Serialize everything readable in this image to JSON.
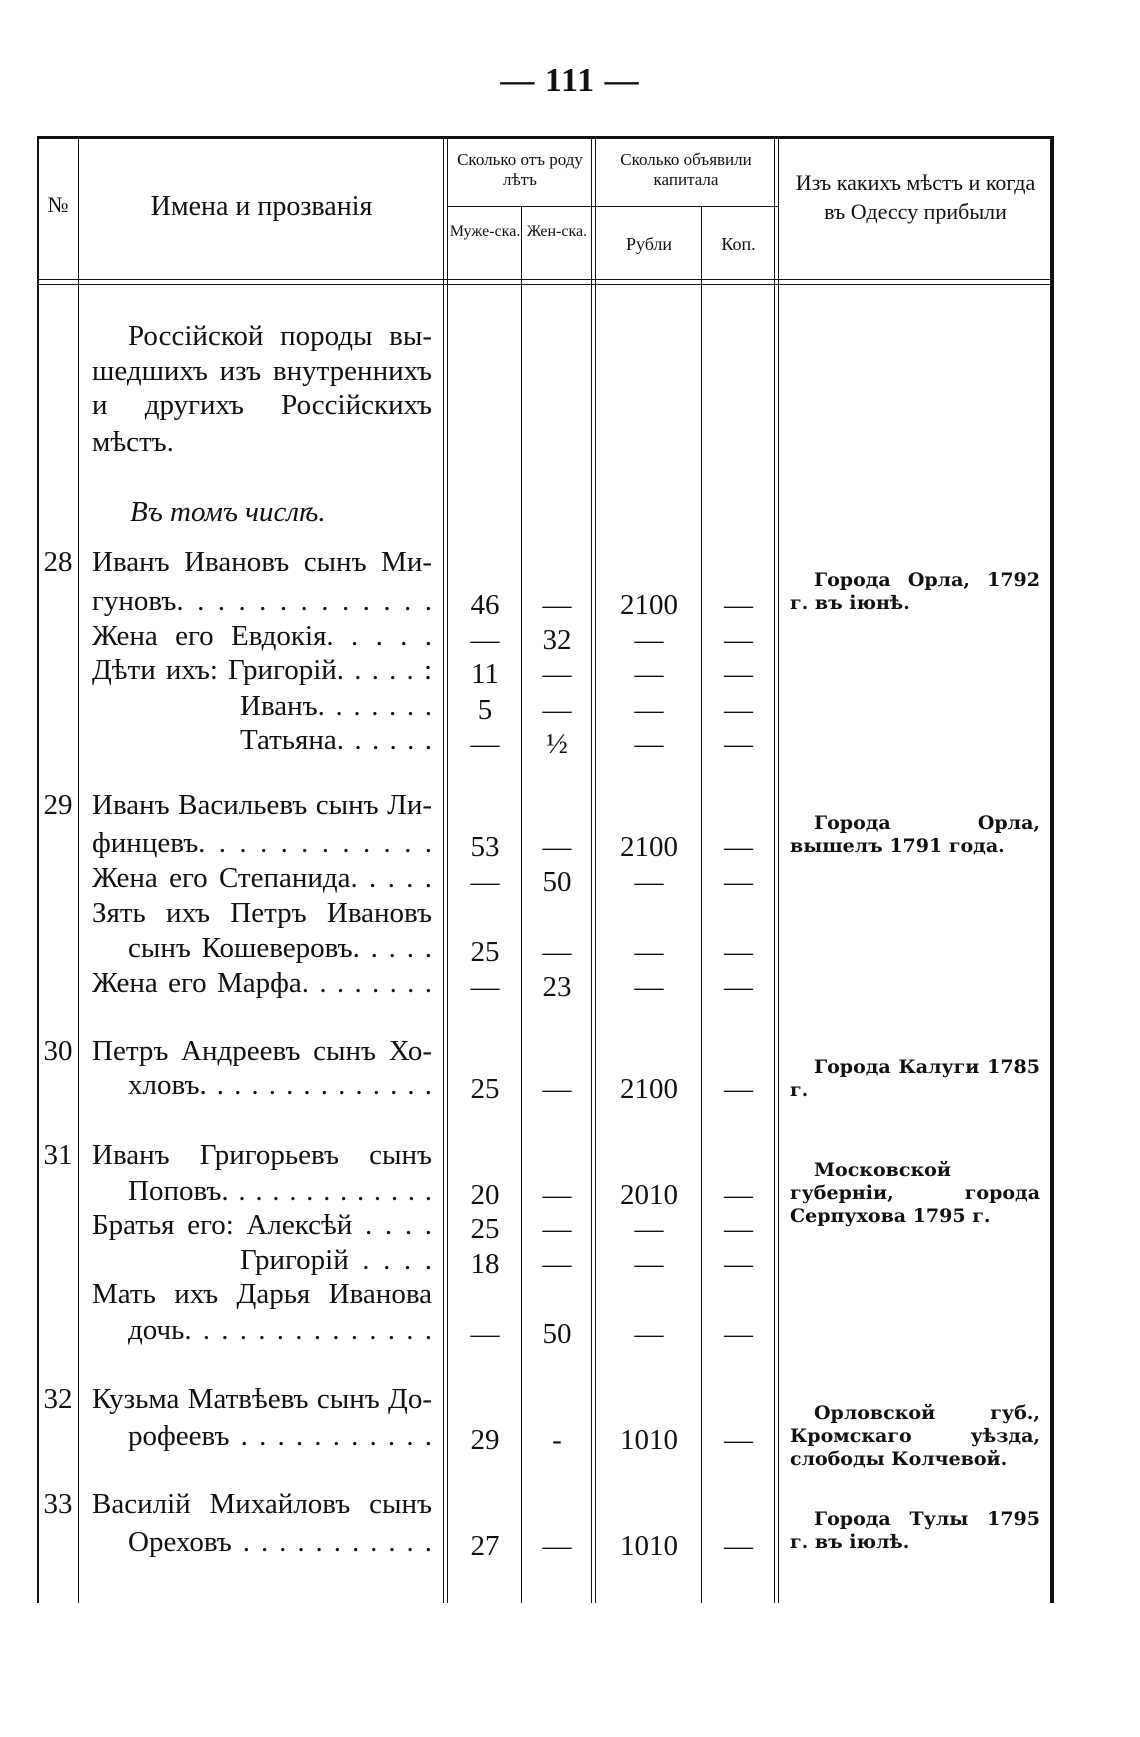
{
  "page_number": "— 111 —",
  "table": {
    "headers": {
      "number": "№",
      "names": "Имена и прозванія",
      "age_group": "Сколько отъ роду лѣтъ",
      "age_male": "Муже-ска.",
      "age_female": "Жен-ска.",
      "capital_group": "Сколько объявили капитала",
      "rubles": "Рубли",
      "kopecks": "Коп.",
      "origin": "Изъ какихъ мѣстъ и когда въ Одессу прибыли"
    },
    "intro_lines": [
      "Россійской породы вы-",
      "шедшихъ изъ внутреннихъ",
      "и другихъ Россійскихъ",
      "мѣстъ."
    ],
    "subheading": "Въ томъ числѣ.",
    "lines": [
      {
        "num": "28",
        "text": "Иванъ Ивановъ сынъ Ми-"
      },
      {
        "text": "гуновъ. . . . . . . . . . . . .",
        "male": "46",
        "female": "—",
        "rub": "2100",
        "kop": "—"
      },
      {
        "text": "Жена его Евдокія. . . . .",
        "male": "—",
        "female": "32",
        "rub": "—",
        "kop": "—"
      },
      {
        "text": "Дѣти ихъ: Григорій. . . . . :",
        "male": "11",
        "female": "—",
        "rub": "—",
        "kop": "—"
      },
      {
        "text": "Иванъ. . . . . . .",
        "indent": true,
        "male": "5",
        "female": "—",
        "rub": "—",
        "kop": "—"
      },
      {
        "text": "Татьяна. . . . . .",
        "indent": true,
        "male": "—",
        "female": "½",
        "rub": "—",
        "kop": "—"
      },
      {
        "num": "29",
        "text": "Иванъ Васильевъ сынъ Ли-"
      },
      {
        "text": "финцевъ. . . . . . . . . . . .",
        "male": "53",
        "female": "—",
        "rub": "2100",
        "kop": "—"
      },
      {
        "text": "Жена его Степанида. . . . .",
        "male": "—",
        "female": "50",
        "rub": "—",
        "kop": "—"
      },
      {
        "text": "Зять ихъ Петръ Ивановъ"
      },
      {
        "text": "сынъ Кошеверовъ. . . . .",
        "indent_small": true,
        "male": "25",
        "female": "—",
        "rub": "—",
        "kop": "—"
      },
      {
        "text": "Жена его Марфа. . . . . . . .",
        "male": "—",
        "female": "23",
        "rub": "—",
        "kop": "—"
      },
      {
        "num": "30",
        "text": "Петръ Андреевъ сынъ Хо-"
      },
      {
        "text": "хловъ. . . . . . . . . . . . . .",
        "indent_small": true,
        "male": "25",
        "female": "—",
        "rub": "2100",
        "kop": "—"
      },
      {
        "num": "31",
        "text": "Иванъ Григорьевъ сынъ"
      },
      {
        "text": "Поповъ. . . . . . . . . . . . .",
        "indent_small": true,
        "male": "20",
        "female": "—",
        "rub": "2010",
        "kop": "—"
      },
      {
        "text": "Братья его: Алексѣй . . . .",
        "male": "25",
        "female": "—",
        "rub": "—",
        "kop": "—"
      },
      {
        "text": "Григорій . . . .",
        "indent": true,
        "male": "18",
        "female": "—",
        "rub": "—",
        "kop": "—"
      },
      {
        "text": "Мать ихъ Дарья Иванова"
      },
      {
        "text": "дочь. . . . . . . . . . . . . .",
        "indent_small": true,
        "male": "—",
        "female": "50",
        "rub": "—",
        "kop": "—"
      },
      {
        "num": "32",
        "text": "Кузьма Матвѣевъ сынъ До-"
      },
      {
        "text": "рофеевъ . . . . . . . . . . .",
        "indent_small": true,
        "male": "29",
        "female": "-",
        "rub": "1010",
        "kop": "—"
      },
      {
        "num": "33",
        "text": "Василій Михайловъ сынъ"
      },
      {
        "text": "Ореховъ . . . . . . . . . . .",
        "indent_small": true,
        "male": "27",
        "female": "—",
        "rub": "1010",
        "kop": "—"
      }
    ],
    "places": [
      "Города Орла, 1792 г. въ іюнѣ.",
      "Города Орла, вышелъ 1791 года.",
      "Города Калуги 1785 г.",
      "Московской губерніи, города Серпухова 1795 г.",
      "Орловской губ., Кромскаго уѣзда, слободы Колчевой.",
      "Города Тулы 1795 г. въ іюлѣ."
    ]
  }
}
